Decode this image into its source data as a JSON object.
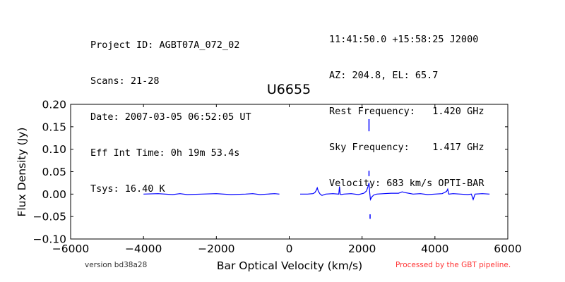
{
  "header": {
    "left_lines": [
      "Project ID: AGBT07A_072_02",
      "Scans: 21-28",
      "Date: 2007-03-05 06:52:05 UT",
      "Eff Int Time: 0h 19m 53.4s",
      "Tsys: 16.40 K"
    ],
    "right_lines": [
      "11:41:50.0 +15:58:25 J2000",
      "AZ: 204.8, EL: 65.7",
      "Rest Frequency:   1.420 GHz",
      "Sky Frequency:    1.417 GHz",
      "Velocity: 683 km/s OPTI-BAR"
    ]
  },
  "footer": {
    "version": "version bd38a28",
    "pipeline_note": "Processed by the GBT pipeline.",
    "pipeline_color": "#ff3333"
  },
  "colors": {
    "series": "#0000ff",
    "axes": "#000000"
  },
  "chart_data": {
    "type": "line",
    "title": "U6655",
    "xlabel": "Bar Optical Velocity (km/s)",
    "ylabel": "Flux Density (Jy)",
    "xlim": [
      -6000,
      6000
    ],
    "ylim": [
      -0.1,
      0.2
    ],
    "xticks": [
      -6000,
      -4000,
      -2000,
      0,
      2000,
      4000,
      6000
    ],
    "xtick_labels": [
      "−6000",
      "−4000",
      "−2000",
      "0",
      "2000",
      "4000",
      "6000"
    ],
    "yticks": [
      -0.1,
      -0.05,
      0.0,
      0.05,
      0.1,
      0.15,
      0.2
    ],
    "ytick_labels": [
      "−0.10",
      "−0.05",
      "0.00",
      "0.05",
      "0.10",
      "0.15",
      "0.20"
    ],
    "grid": false,
    "series": [
      {
        "segments": [
          {
            "x": [
              -4000,
              -3600,
              -3200,
              -3000,
              -2800,
              -2400,
              -2000,
              -1600,
              -1200,
              -1000,
              -800,
              -600,
              -400,
              -270
            ],
            "y": [
              0.0,
              0.001,
              -0.001,
              0.001,
              -0.001,
              0.0,
              0.001,
              -0.001,
              0.0,
              0.001,
              -0.001,
              0.0,
              0.001,
              0.0
            ]
          },
          {
            "x": [
              300,
              500,
              650,
              700,
              740,
              770,
              800,
              850,
              900,
              1000,
              1200,
              1360,
              1380,
              1400,
              1420,
              1500,
              1700,
              1900,
              2050,
              2120,
              2160,
              2190,
              2210,
              2230,
              2270,
              2320,
              2400,
              2600,
              2800,
              3000,
              3100,
              3200,
              3400,
              3600,
              3800,
              4000,
              4200,
              4320,
              4350,
              4380,
              4500,
              4700,
              4900,
              5000,
              5050,
              5100,
              5300,
              5500
            ],
            "y": [
              0.0,
              0.0,
              0.001,
              0.003,
              0.008,
              0.014,
              0.006,
              0.0,
              -0.003,
              0.0,
              0.001,
              0.0,
              0.017,
              0.0,
              -0.001,
              0.0,
              0.001,
              -0.001,
              0.002,
              0.007,
              0.016,
              0.025,
              0.003,
              -0.012,
              -0.006,
              -0.002,
              0.0,
              0.001,
              0.002,
              0.002,
              0.005,
              0.003,
              0.0,
              0.001,
              -0.001,
              0.0,
              0.001,
              0.006,
              0.011,
              0.0,
              0.001,
              0.0,
              -0.001,
              0.0,
              -0.012,
              0.0,
              0.001,
              0.0
            ]
          }
        ]
      },
      {
        "x": [
          2190,
          2190,
          2190,
          2190,
          2220,
          2220
        ],
        "y": [
          0.167,
          0.14,
          0.052,
          0.04,
          -0.045,
          -0.055
        ]
      }
    ]
  }
}
